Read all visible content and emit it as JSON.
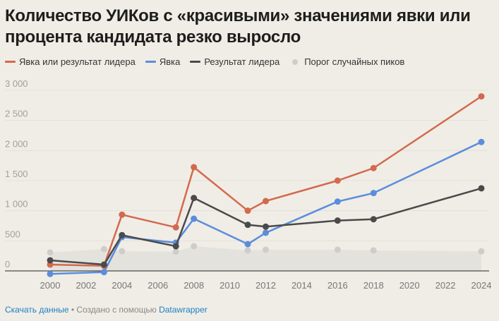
{
  "title": "Количество УИКов с «красивыми» значениями явки или процента кандидата резко выросло",
  "footer": {
    "download": "Скачать данные",
    "separator": " • Создано с помощью ",
    "tool": "Datawrapper"
  },
  "chart_data": {
    "type": "line",
    "title": "Количество УИКов с «красивыми» значениями явки или процента кандидата резко выросло",
    "x": [
      2000,
      2003,
      2004,
      2007,
      2008,
      2011,
      2012,
      2016,
      2018,
      2024
    ],
    "xticks": [
      "2000",
      "2002",
      "2004",
      "2006",
      "2008",
      "2010",
      "2012",
      "2014",
      "2016",
      "2018",
      "2020",
      "2022",
      "2024"
    ],
    "yticks": [
      "0",
      "500",
      "1 000",
      "1 500",
      "2 000",
      "2 500",
      "3 000"
    ],
    "ylim": [
      0,
      3000
    ],
    "xlim": [
      2000,
      2024
    ],
    "grid": true,
    "legend": "top-left",
    "series": [
      {
        "name": "Явка или результат лидера",
        "color": "#d3694e",
        "values": [
          105,
          85,
          934,
          723,
          1723,
          1000,
          1160,
          1500,
          1708,
          2899
        ]
      },
      {
        "name": "Явка",
        "color": "#5b8ddc",
        "values": [
          -50,
          -20,
          563,
          469,
          867,
          445,
          633,
          1152,
          1293,
          2141
        ]
      },
      {
        "name": "Результат лидера",
        "color": "#4a4a4a",
        "values": [
          176,
          105,
          594,
          410,
          1211,
          766,
          735,
          836,
          859,
          1372
        ]
      },
      {
        "name": "Порог случайных пиков",
        "color": "#cfcdca",
        "style": "area-dots",
        "values": [
          308,
          363,
          328,
          320,
          410,
          340,
          352,
          352,
          340,
          325
        ]
      }
    ]
  }
}
